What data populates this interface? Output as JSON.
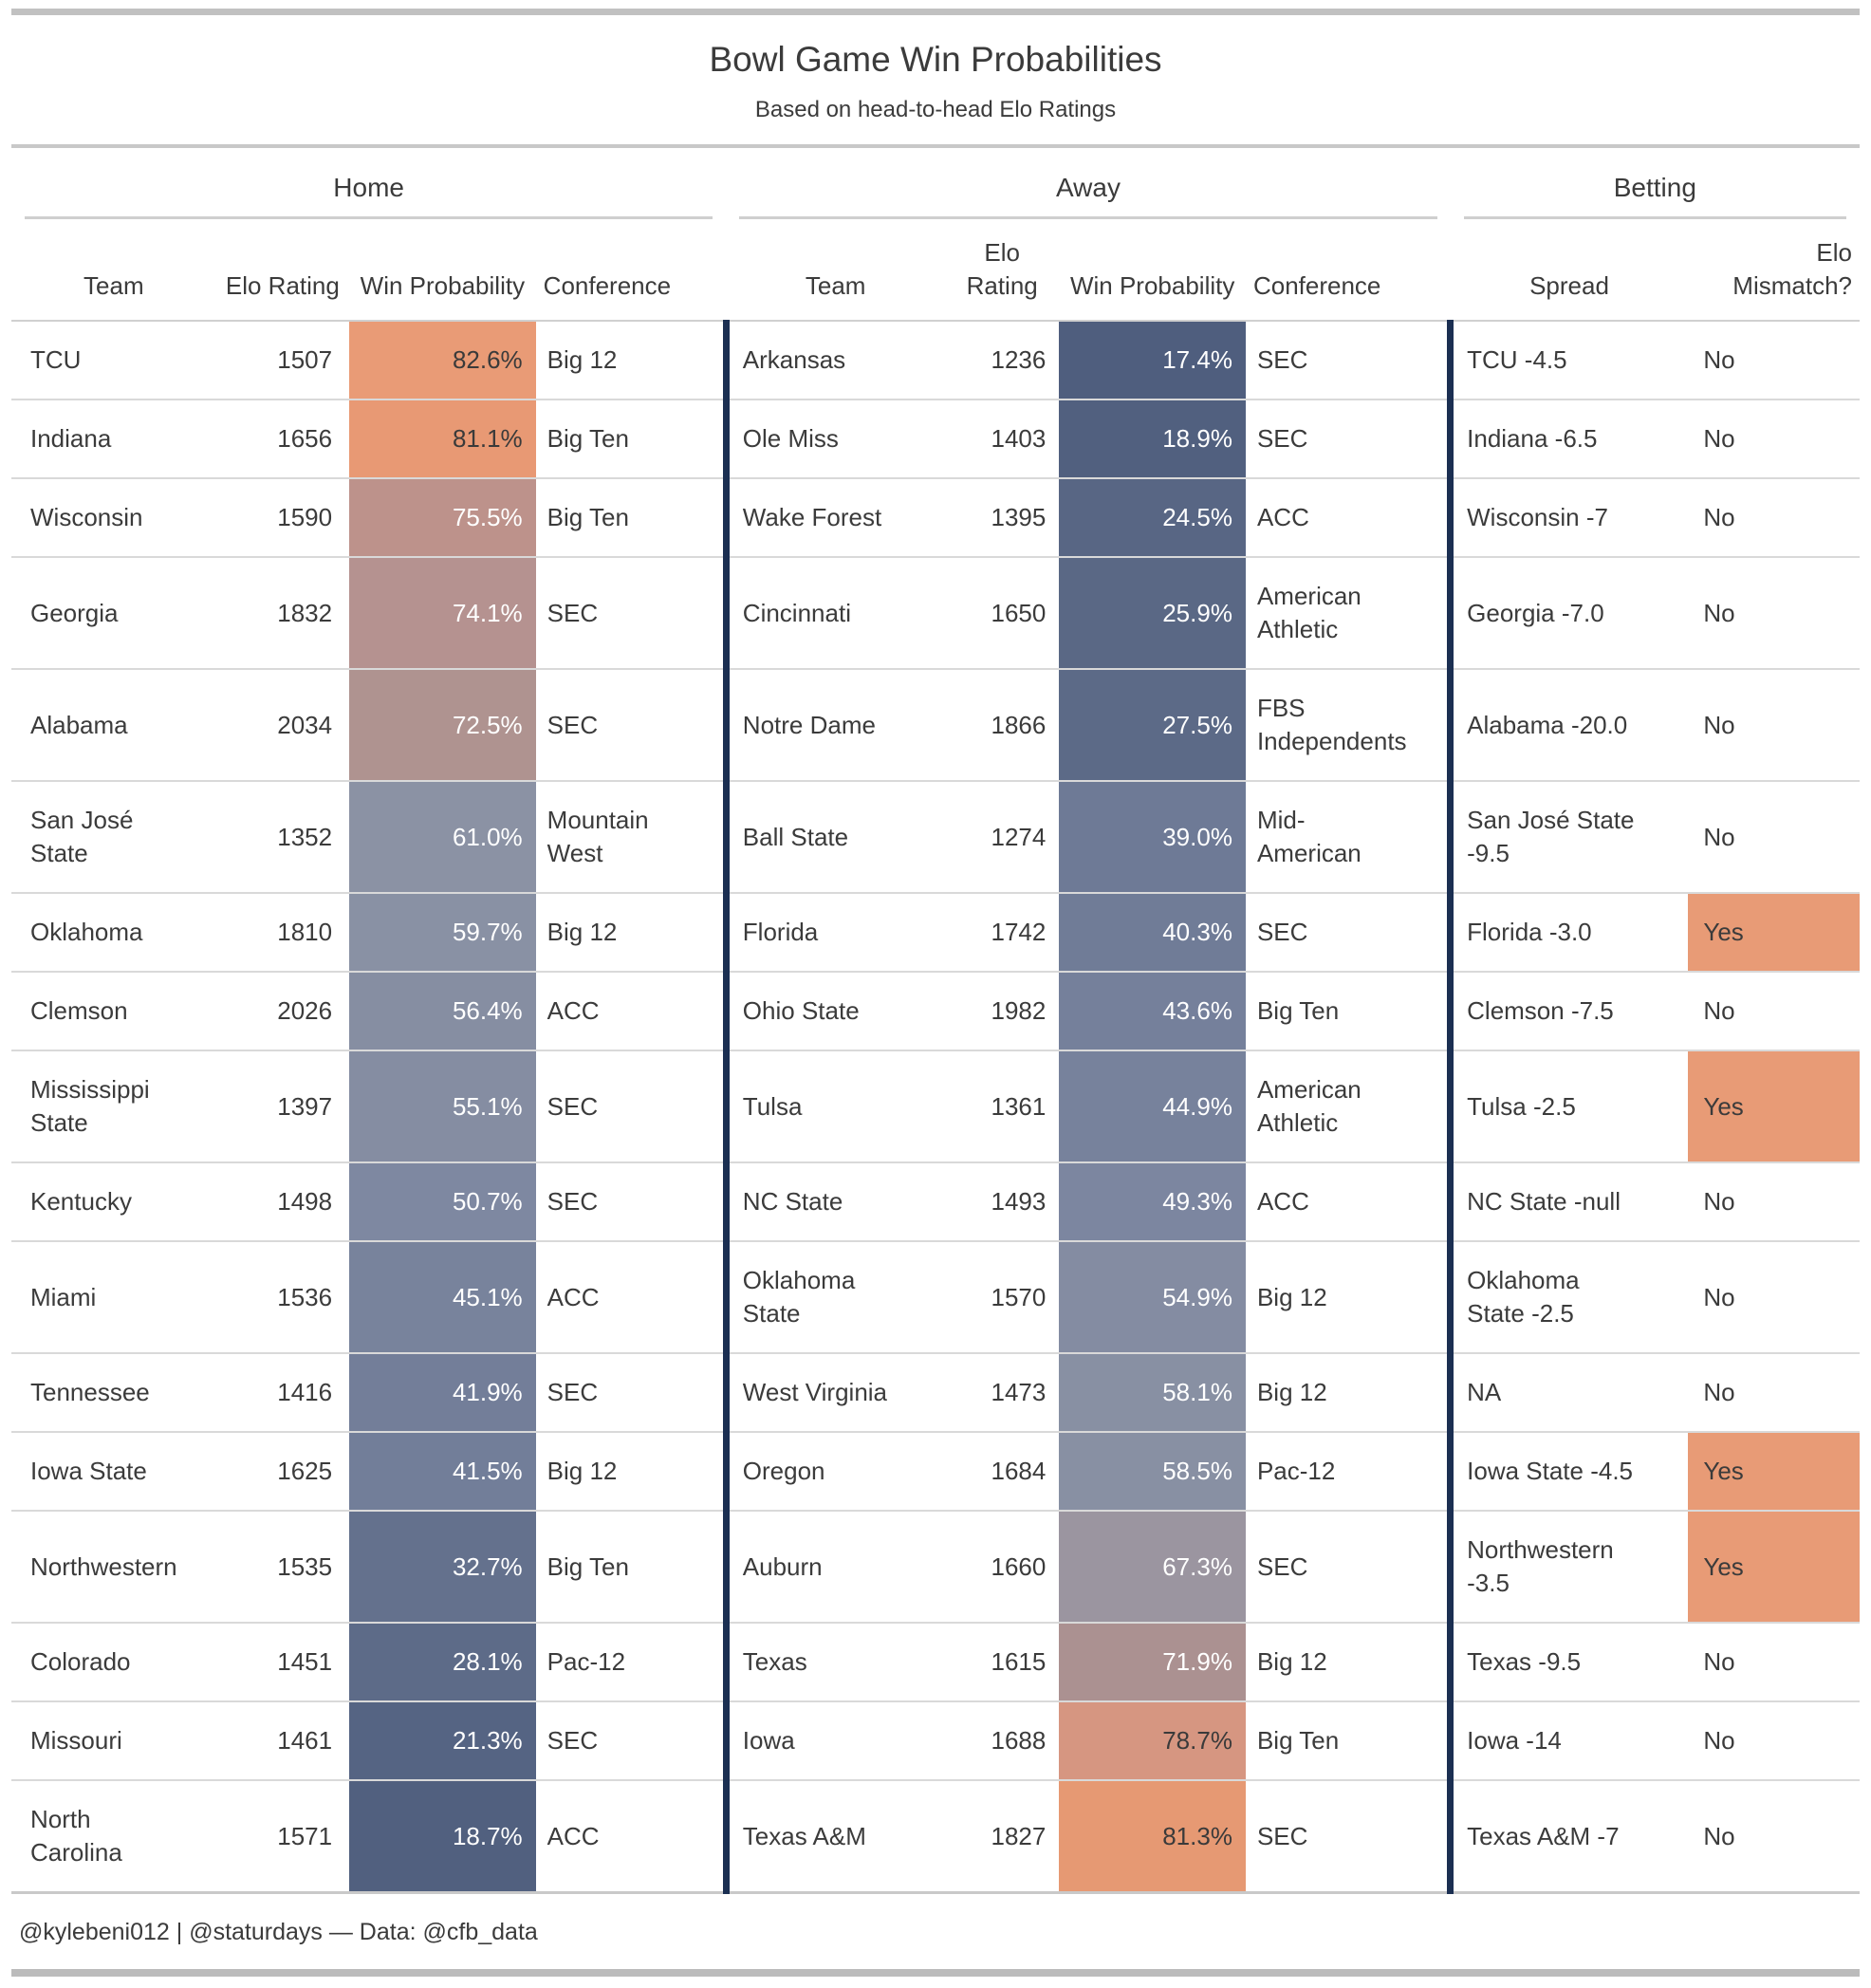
{
  "colors": {
    "mismatch_highlight": "#E89B76",
    "divider_navy": "#1B2F52",
    "gridline": "#D9D9D9",
    "prob_high_orange": "#E99B76",
    "prob_low_navy": "#4F5E7E"
  },
  "chart_data": {
    "type": "table",
    "title": "Bowl Game Win Probabilities",
    "subtitle": "Based on head-to-head Elo Ratings",
    "footer": "@kylebeni012 | @staturdays — Data: @cfb_data",
    "column_groups": {
      "home": "Home",
      "away": "Away",
      "betting": "Betting"
    },
    "columns": {
      "team": "Team",
      "elo": "Elo Rating",
      "prob": "Win Probability",
      "conference": "Conference",
      "spread": "Spread",
      "mismatch": "Elo Mismatch?"
    },
    "rows": [
      {
        "home": {
          "team": "TCU",
          "elo": 1507,
          "prob": 82.6,
          "prob_label": "82.6%",
          "bg": "#E99B76",
          "fg": "#3A3A3A",
          "conference": "Big 12"
        },
        "away": {
          "team": "Arkansas",
          "elo": 1236,
          "prob": 17.4,
          "prob_label": "17.4%",
          "bg": "#4F5E7E",
          "fg": "#FFFFFF",
          "conference": "SEC"
        },
        "betting": {
          "spread": "TCU -4.5",
          "mismatch": "No",
          "highlight": false
        }
      },
      {
        "home": {
          "team": "Indiana",
          "elo": 1656,
          "prob": 81.1,
          "prob_label": "81.1%",
          "bg": "#E89974",
          "fg": "#3A3A3A",
          "conference": "Big Ten"
        },
        "away": {
          "team": "Ole Miss",
          "elo": 1403,
          "prob": 18.9,
          "prob_label": "18.9%",
          "bg": "#51607F",
          "fg": "#FFFFFF",
          "conference": "SEC"
        },
        "betting": {
          "spread": "Indiana -6.5",
          "mismatch": "No",
          "highlight": false
        }
      },
      {
        "home": {
          "team": "Wisconsin",
          "elo": 1590,
          "prob": 75.5,
          "prob_label": "75.5%",
          "bg": "#BD928B",
          "fg": "#FFFFFF",
          "conference": "Big Ten"
        },
        "away": {
          "team": "Wake Forest",
          "elo": 1395,
          "prob": 24.5,
          "prob_label": "24.5%",
          "bg": "#586684",
          "fg": "#FFFFFF",
          "conference": "ACC"
        },
        "betting": {
          "spread": "Wisconsin -7",
          "mismatch": "No",
          "highlight": false
        }
      },
      {
        "home": {
          "team": "Georgia",
          "elo": 1832,
          "prob": 74.1,
          "prob_label": "74.1%",
          "bg": "#B59290",
          "fg": "#FFFFFF",
          "conference": "SEC"
        },
        "away": {
          "team": "Cincinnati",
          "elo": 1650,
          "prob": 25.9,
          "prob_label": "25.9%",
          "bg": "#5A6885",
          "fg": "#FFFFFF",
          "conference": "American Athletic"
        },
        "betting": {
          "spread": "Georgia -7.0",
          "mismatch": "No",
          "highlight": false
        }
      },
      {
        "home": {
          "team": "Alabama",
          "elo": 2034,
          "prob": 72.5,
          "prob_label": "72.5%",
          "bg": "#AF9390",
          "fg": "#FFFFFF",
          "conference": "SEC"
        },
        "away": {
          "team": "Notre Dame",
          "elo": 1866,
          "prob": 27.5,
          "prob_label": "27.5%",
          "bg": "#5C6A87",
          "fg": "#FFFFFF",
          "conference": "FBS Independents"
        },
        "betting": {
          "spread": "Alabama -20.0",
          "mismatch": "No",
          "highlight": false
        }
      },
      {
        "home": {
          "team": "San José State",
          "elo": 1352,
          "prob": 61.0,
          "prob_label": "61.0%",
          "bg": "#8B92A4",
          "fg": "#FFFFFF",
          "conference": "Mountain West"
        },
        "away": {
          "team": "Ball State",
          "elo": 1274,
          "prob": 39.0,
          "prob_label": "39.0%",
          "bg": "#6E7A96",
          "fg": "#FFFFFF",
          "conference": "Mid-American"
        },
        "betting": {
          "spread": "San José State -9.5",
          "mismatch": "No",
          "highlight": false
        }
      },
      {
        "home": {
          "team": "Oklahoma",
          "elo": 1810,
          "prob": 59.7,
          "prob_label": "59.7%",
          "bg": "#8991A4",
          "fg": "#FFFFFF",
          "conference": "Big 12"
        },
        "away": {
          "team": "Florida",
          "elo": 1742,
          "prob": 40.3,
          "prob_label": "40.3%",
          "bg": "#707C97",
          "fg": "#FFFFFF",
          "conference": "SEC"
        },
        "betting": {
          "spread": "Florida -3.0",
          "mismatch": "Yes",
          "highlight": true
        }
      },
      {
        "home": {
          "team": "Clemson",
          "elo": 2026,
          "prob": 56.4,
          "prob_label": "56.4%",
          "bg": "#868EA2",
          "fg": "#FFFFFF",
          "conference": "ACC"
        },
        "away": {
          "team": "Ohio State",
          "elo": 1982,
          "prob": 43.6,
          "prob_label": "43.6%",
          "bg": "#75809B",
          "fg": "#FFFFFF",
          "conference": "Big Ten"
        },
        "betting": {
          "spread": "Clemson -7.5",
          "mismatch": "No",
          "highlight": false
        }
      },
      {
        "home": {
          "team": "Mississippi State",
          "elo": 1397,
          "prob": 55.1,
          "prob_label": "55.1%",
          "bg": "#858DA2",
          "fg": "#FFFFFF",
          "conference": "SEC"
        },
        "away": {
          "team": "Tulsa",
          "elo": 1361,
          "prob": 44.9,
          "prob_label": "44.9%",
          "bg": "#77829C",
          "fg": "#FFFFFF",
          "conference": "American Athletic"
        },
        "betting": {
          "spread": "Tulsa -2.5",
          "mismatch": "Yes",
          "highlight": true
        }
      },
      {
        "home": {
          "team": "Kentucky",
          "elo": 1498,
          "prob": 50.7,
          "prob_label": "50.7%",
          "bg": "#7E88A1",
          "fg": "#FFFFFF",
          "conference": "SEC"
        },
        "away": {
          "team": "NC State",
          "elo": 1493,
          "prob": 49.3,
          "prob_label": "49.3%",
          "bg": "#7C86A0",
          "fg": "#FFFFFF",
          "conference": "ACC"
        },
        "betting": {
          "spread": "NC State -null",
          "mismatch": "No",
          "highlight": false
        }
      },
      {
        "home": {
          "team": "Miami",
          "elo": 1536,
          "prob": 45.1,
          "prob_label": "45.1%",
          "bg": "#78839C",
          "fg": "#FFFFFF",
          "conference": "ACC"
        },
        "away": {
          "team": "Oklahoma State",
          "elo": 1570,
          "prob": 54.9,
          "prob_label": "54.9%",
          "bg": "#848CA2",
          "fg": "#FFFFFF",
          "conference": "Big 12"
        },
        "betting": {
          "spread": "Oklahoma State -2.5",
          "mismatch": "No",
          "highlight": false
        }
      },
      {
        "home": {
          "team": "Tennessee",
          "elo": 1416,
          "prob": 41.9,
          "prob_label": "41.9%",
          "bg": "#737E99",
          "fg": "#FFFFFF",
          "conference": "SEC"
        },
        "away": {
          "team": "West Virginia",
          "elo": 1473,
          "prob": 58.1,
          "prob_label": "58.1%",
          "bg": "#8890A3",
          "fg": "#FFFFFF",
          "conference": "Big 12"
        },
        "betting": {
          "spread": "NA",
          "mismatch": "No",
          "highlight": false
        }
      },
      {
        "home": {
          "team": "Iowa State",
          "elo": 1625,
          "prob": 41.5,
          "prob_label": "41.5%",
          "bg": "#727E99",
          "fg": "#FFFFFF",
          "conference": "Big 12"
        },
        "away": {
          "team": "Oregon",
          "elo": 1684,
          "prob": 58.5,
          "prob_label": "58.5%",
          "bg": "#8890A3",
          "fg": "#FFFFFF",
          "conference": "Pac-12"
        },
        "betting": {
          "spread": "Iowa State -4.5",
          "mismatch": "Yes",
          "highlight": true
        }
      },
      {
        "home": {
          "team": "Northwestern",
          "elo": 1535,
          "prob": 32.7,
          "prob_label": "32.7%",
          "bg": "#64718D",
          "fg": "#FFFFFF",
          "conference": "Big Ten"
        },
        "away": {
          "team": "Auburn",
          "elo": 1660,
          "prob": 67.3,
          "prob_label": "67.3%",
          "bg": "#9B95A0",
          "fg": "#FFFFFF",
          "conference": "SEC"
        },
        "betting": {
          "spread": "Northwestern -3.5",
          "mismatch": "Yes",
          "highlight": true
        }
      },
      {
        "home": {
          "team": "Colorado",
          "elo": 1451,
          "prob": 28.1,
          "prob_label": "28.1%",
          "bg": "#5D6B88",
          "fg": "#FFFFFF",
          "conference": "Pac-12"
        },
        "away": {
          "team": "Texas",
          "elo": 1615,
          "prob": 71.9,
          "prob_label": "71.9%",
          "bg": "#AB9191",
          "fg": "#FFFFFF",
          "conference": "Big 12"
        },
        "betting": {
          "spread": "Texas -9.5",
          "mismatch": "No",
          "highlight": false
        }
      },
      {
        "home": {
          "team": "Missouri",
          "elo": 1461,
          "prob": 21.3,
          "prob_label": "21.3%",
          "bg": "#556483",
          "fg": "#FFFFFF",
          "conference": "SEC"
        },
        "away": {
          "team": "Iowa",
          "elo": 1688,
          "prob": 78.7,
          "prob_label": "78.7%",
          "bg": "#D69681",
          "fg": "#3A3A3A",
          "conference": "Big Ten"
        },
        "betting": {
          "spread": "Iowa -14",
          "mismatch": "No",
          "highlight": false
        }
      },
      {
        "home": {
          "team": "North Carolina",
          "elo": 1571,
          "prob": 18.7,
          "prob_label": "18.7%",
          "bg": "#51607F",
          "fg": "#FFFFFF",
          "conference": "ACC"
        },
        "away": {
          "team": "Texas A&M",
          "elo": 1827,
          "prob": 81.3,
          "prob_label": "81.3%",
          "bg": "#E69973",
          "fg": "#3A3A3A",
          "conference": "SEC"
        },
        "betting": {
          "spread": "Texas A&M -7",
          "mismatch": "No",
          "highlight": false
        }
      }
    ]
  }
}
